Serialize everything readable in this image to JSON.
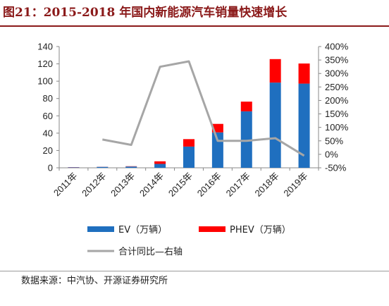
{
  "figure": {
    "title": "图21：2015-2018 年国内新能源汽车销量快速增长",
    "source": "数据来源：中汽协、开源证券研究所"
  },
  "colors": {
    "ev": "#1f6fbf",
    "phev": "#ff0000",
    "yoy": "#a6a6a6",
    "title": "#8b1a1a"
  },
  "chart_data": {
    "type": "bar",
    "categories": [
      "2011年",
      "2012年",
      "2013年",
      "2014年",
      "2015年",
      "2016年",
      "2017年",
      "2018年",
      "2019年"
    ],
    "series": [
      {
        "name": "EV（万辆）",
        "kind": "stacked-bar",
        "axis": "left",
        "values": [
          0.6,
          1.1,
          1.5,
          4.5,
          24.5,
          40.9,
          65.2,
          98.4,
          97.2
        ]
      },
      {
        "name": "PHEV（万辆）",
        "kind": "stacked-bar",
        "axis": "left",
        "values": [
          0.2,
          0.1,
          0.3,
          3.0,
          8.6,
          9.8,
          11.2,
          27.1,
          23.2
        ]
      },
      {
        "name": "合计同比—右轴",
        "kind": "line",
        "axis": "right",
        "values": [
          null,
          55,
          35,
          325,
          345,
          50,
          50,
          60,
          -5
        ]
      }
    ],
    "y_left": {
      "lim": [
        0,
        140
      ],
      "ticks": [
        0,
        20,
        40,
        60,
        80,
        100,
        120,
        140
      ]
    },
    "y_right": {
      "lim": [
        -50,
        400
      ],
      "ticks": [
        -50,
        0,
        50,
        100,
        150,
        200,
        250,
        300,
        350,
        400
      ],
      "tick_labels": [
        "-50%",
        "0%",
        "50%",
        "100%",
        "150%",
        "200%",
        "250%",
        "300%",
        "350%",
        "400%"
      ]
    },
    "legend_position": "bottom",
    "grid": false
  }
}
